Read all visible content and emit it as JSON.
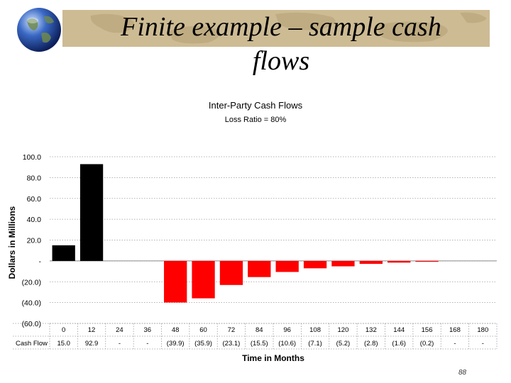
{
  "slide": {
    "title_line1": "Finite example – sample cash",
    "title_line2": "flows",
    "page_number": "88"
  },
  "chart_data": {
    "type": "bar",
    "title": "Inter-Party Cash Flows",
    "subtitle": "Loss Ratio = 80%",
    "xlabel": "Time in Months",
    "ylabel": "Dollars in Millions",
    "ylim": [
      -60,
      100
    ],
    "yticks": [
      {
        "value": 100,
        "label": "100.0"
      },
      {
        "value": 80,
        "label": "80.0"
      },
      {
        "value": 60,
        "label": "60.0"
      },
      {
        "value": 40,
        "label": "40.0"
      },
      {
        "value": 20,
        "label": "20.0"
      },
      {
        "value": 0,
        "label": "-"
      },
      {
        "value": -20,
        "label": "(20.0)"
      },
      {
        "value": -40,
        "label": "(40.0)"
      },
      {
        "value": -60,
        "label": "(60.0)"
      }
    ],
    "grid": true,
    "categories": [
      "0",
      "12",
      "24",
      "36",
      "48",
      "60",
      "72",
      "84",
      "96",
      "108",
      "120",
      "132",
      "144",
      "156",
      "168",
      "180"
    ],
    "values": [
      15.0,
      92.9,
      0,
      0,
      -39.9,
      -35.9,
      -23.1,
      -15.5,
      -10.6,
      -7.1,
      -5.2,
      -2.8,
      -1.6,
      -0.2,
      0,
      0
    ],
    "table_row_label": "Cash Flow",
    "table_values": [
      "15.0",
      "92.9",
      "-",
      "-",
      "(39.9)",
      "(35.9)",
      "(23.1)",
      "(15.5)",
      "(10.6)",
      "(7.1)",
      "(5.2)",
      "(2.8)",
      "(1.6)",
      "(0.2)",
      "-",
      "-"
    ],
    "colors": {
      "positive": "#000000",
      "negative": "#ff0000",
      "grid": "#9a9a9a"
    }
  }
}
